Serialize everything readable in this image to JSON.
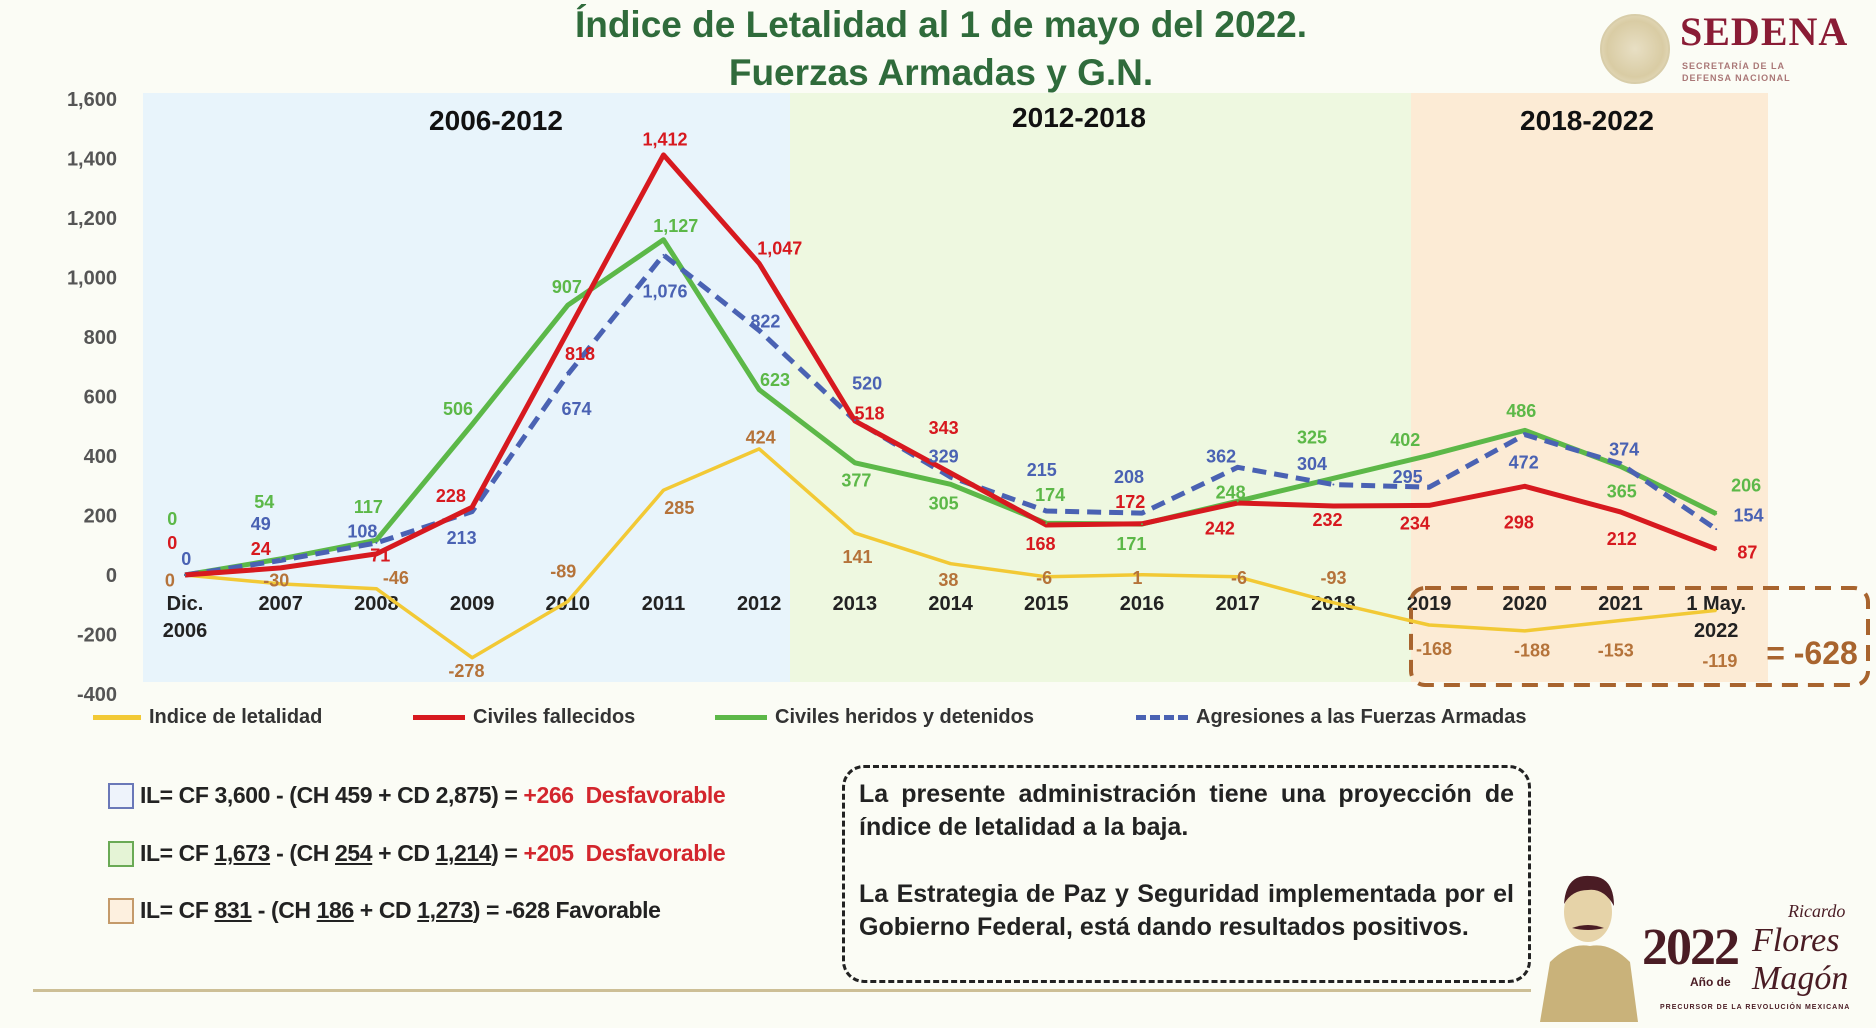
{
  "header": {
    "title_line1": "Índice de Letalidad al 1 de mayo del 2022.",
    "title_line2": "Fuerzas Armadas y G.N."
  },
  "logos": {
    "sedena_name": "SEDENA",
    "sedena_sub1": "SECRETARÍA DE LA",
    "sedena_sub2": "DEFENSA NACIONAL",
    "magon_year": "2022",
    "magon_ano": "Año de",
    "magon_first": "Ricardo",
    "magon_last1": "Flores",
    "magon_last2": "Magón",
    "magon_sub": "PRECURSOR DE LA REVOLUCIÓN MEXICANA"
  },
  "chart_data": {
    "type": "line",
    "title": "Índice de Letalidad al 1 de mayo del 2022. Fuerzas Armadas y G.N.",
    "categories": [
      "Dic. 2006",
      "2007",
      "2008",
      "2009",
      "2010",
      "2011",
      "2012",
      "2013",
      "2014",
      "2015",
      "2016",
      "2017",
      "2018",
      "2019",
      "2020",
      "2021",
      "1 May. 2022"
    ],
    "category_lines": [
      [
        "Dic.",
        "2006"
      ],
      [
        "2007"
      ],
      [
        "2008"
      ],
      [
        "2009"
      ],
      [
        "2010"
      ],
      [
        "2011"
      ],
      [
        "2012"
      ],
      [
        "2013"
      ],
      [
        "2014"
      ],
      [
        "2015"
      ],
      [
        "2016"
      ],
      [
        "2017"
      ],
      [
        "2018"
      ],
      [
        "2019"
      ],
      [
        "2020"
      ],
      [
        "2021"
      ],
      [
        "1 May.",
        "2022"
      ]
    ],
    "ylim": [
      -400,
      1600
    ],
    "yticks": [
      -400,
      -200,
      0,
      200,
      400,
      600,
      800,
      1000,
      1200,
      1400,
      1600
    ],
    "ytick_labels": [
      "-400",
      "-200",
      "0",
      "200",
      "400",
      "600",
      "800",
      "1,000",
      "1,200",
      "1,400",
      "1,600"
    ],
    "grid": false,
    "legend_position": "bottom",
    "periods": [
      {
        "label": "2006-2012",
        "color": "#e8f4fb"
      },
      {
        "label": "2012-2018",
        "color": "#eef8e0"
      },
      {
        "label": "2018-2022",
        "color": "#fcebd5"
      }
    ],
    "series": [
      {
        "name": "Indice de letalidad",
        "color": "#f2c935",
        "label_color": "#b5733a",
        "dashed": false,
        "values": [
          0,
          -30,
          -46,
          -278,
          -89,
          285,
          424,
          141,
          38,
          -6,
          1,
          -6,
          -93,
          -168,
          -188,
          -153,
          -119
        ],
        "labels": [
          "0",
          "-30",
          "-46",
          "-278",
          "-89",
          "285",
          "424",
          "141",
          "38",
          "-6",
          "1",
          "-6",
          "-93",
          "-168",
          "-188",
          "-153",
          "-119"
        ]
      },
      {
        "name": "Civiles fallecidos",
        "color": "#d7191f",
        "label_color": "#d7191f",
        "dashed": false,
        "values": [
          0,
          24,
          71,
          228,
          818,
          1412,
          1047,
          518,
          343,
          168,
          172,
          242,
          232,
          234,
          298,
          212,
          87
        ],
        "labels": [
          "0",
          "24",
          "71",
          "228",
          "818",
          "1,412",
          "1,047",
          "518",
          "343",
          "168",
          "172",
          "242",
          "232",
          "234",
          "298",
          "212",
          "87"
        ]
      },
      {
        "name": "Civiles heridos y detenidos",
        "color": "#5cb848",
        "label_color": "#5cb848",
        "dashed": false,
        "values": [
          0,
          54,
          117,
          506,
          907,
          1127,
          623,
          377,
          305,
          174,
          171,
          248,
          325,
          402,
          486,
          365,
          206
        ],
        "labels": [
          "0",
          "54",
          "117",
          "506",
          "907",
          "1,127",
          "623",
          "377",
          "305",
          "174",
          "171",
          "248",
          "325",
          "402",
          "486",
          "365",
          "206"
        ]
      },
      {
        "name": "Agresiones a las Fuerzas Armadas",
        "color": "#4a62b3",
        "label_color": "#4a62b3",
        "dashed": true,
        "values": [
          0,
          49,
          108,
          213,
          674,
          1076,
          822,
          520,
          329,
          215,
          208,
          362,
          304,
          295,
          472,
          374,
          154
        ],
        "labels": [
          "0",
          "49",
          "108",
          "213",
          "674",
          "1,076",
          "822",
          "520",
          "329",
          "215",
          "208",
          "362",
          "304",
          "295",
          "472",
          "374",
          "154"
        ]
      }
    ],
    "annotation": "= -628"
  },
  "formulas": [
    {
      "box_color": "#6a78b8",
      "box_fill": "#eef3fb",
      "segments": [
        {
          "t": "IL= CF 3,600 - (CH 459 + CD 2,875) = "
        },
        {
          "t": "+266  Desfavorable",
          "red": true
        }
      ]
    },
    {
      "box_color": "#6aaa55",
      "box_fill": "#e5f4d6",
      "segments": [
        {
          "t": "IL= CF "
        },
        {
          "t": "1,673",
          "u": true
        },
        {
          "t": " - (CH "
        },
        {
          "t": "254",
          "u": true
        },
        {
          "t": " + CD "
        },
        {
          "t": "1,214",
          "u": true
        },
        {
          "t": ") = "
        },
        {
          "t": "+205  Desfavorable",
          "red": true
        }
      ]
    },
    {
      "box_color": "#c49a6a",
      "box_fill": "#fdf0df",
      "segments": [
        {
          "t": "IL= CF "
        },
        {
          "t": "831",
          "u": true
        },
        {
          "t": " - (CH "
        },
        {
          "t": "186",
          "u": true
        },
        {
          "t": " + CD "
        },
        {
          "t": "1,273",
          "u": true
        },
        {
          "t": ") = -628 Favorable"
        }
      ]
    }
  ],
  "note": {
    "p1": "La presente administración tiene una proyección de índice de letalidad a la baja.",
    "p2": "La Estrategia de Paz y Seguridad implementada por el Gobierno Federal, está dando resultados positivos."
  }
}
